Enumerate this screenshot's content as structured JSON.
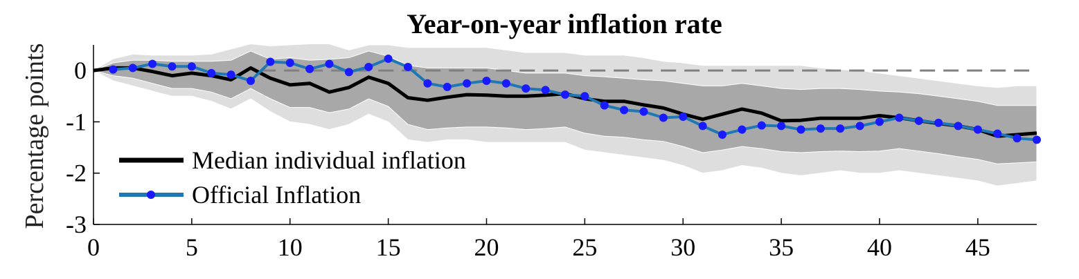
{
  "chart_data": {
    "type": "line",
    "title": "Year-on-year inflation rate",
    "xlabel": "",
    "ylabel": "Percentage points",
    "xlim": [
      0,
      48
    ],
    "ylim": [
      -3,
      0.5
    ],
    "x_ticks": [
      "0",
      "5",
      "10",
      "15",
      "20",
      "25",
      "30",
      "35",
      "40",
      "45"
    ],
    "y_ticks": [
      "0",
      "-1",
      "-2",
      "-3"
    ],
    "x": [
      0,
      1,
      2,
      3,
      4,
      5,
      6,
      7,
      8,
      9,
      10,
      11,
      12,
      13,
      14,
      15,
      16,
      17,
      18,
      19,
      20,
      21,
      22,
      23,
      24,
      25,
      26,
      27,
      28,
      29,
      30,
      31,
      32,
      33,
      34,
      35,
      36,
      37,
      38,
      39,
      40,
      41,
      42,
      43,
      44,
      45,
      46,
      47,
      48
    ],
    "series": [
      {
        "name": "Median individual inflation",
        "color": "#000000",
        "values": [
          0,
          0.05,
          0.05,
          -0.02,
          -0.1,
          -0.05,
          -0.1,
          -0.18,
          0.05,
          -0.15,
          -0.28,
          -0.25,
          -0.42,
          -0.33,
          -0.13,
          -0.25,
          -0.53,
          -0.58,
          -0.52,
          -0.47,
          -0.48,
          -0.5,
          -0.5,
          -0.48,
          -0.45,
          -0.55,
          -0.6,
          -0.6,
          -0.67,
          -0.73,
          -0.85,
          -0.95,
          -0.85,
          -0.75,
          -0.83,
          -0.98,
          -0.97,
          -0.93,
          -0.93,
          -0.93,
          -0.88,
          -0.92,
          -0.98,
          -1.03,
          -1.08,
          -1.15,
          -1.28,
          -1.25,
          -1.22
        ]
      },
      {
        "name": "Official Inflation",
        "color": "#1f77b4",
        "marker_color": "#1a1aff",
        "values": [
          null,
          0.02,
          0.05,
          0.13,
          0.08,
          0.08,
          -0.05,
          -0.08,
          -0.2,
          0.17,
          0.15,
          0.03,
          0.13,
          -0.03,
          0.07,
          0.23,
          0.07,
          -0.25,
          -0.32,
          -0.25,
          -0.2,
          -0.25,
          -0.35,
          -0.38,
          -0.47,
          -0.5,
          -0.68,
          -0.77,
          -0.8,
          -0.92,
          -0.9,
          -1.08,
          -1.25,
          -1.15,
          -1.07,
          -1.08,
          -1.15,
          -1.13,
          -1.13,
          -1.08,
          -1.0,
          -0.92,
          -0.98,
          -1.02,
          -1.08,
          -1.15,
          -1.23,
          -1.32,
          -1.35
        ]
      }
    ],
    "bands": [
      {
        "color": "#dedede",
        "upper": [
          0,
          0.23,
          0.32,
          0.3,
          0.3,
          0.3,
          0.32,
          0.42,
          0.52,
          0.48,
          0.5,
          0.52,
          0.52,
          0.4,
          0.5,
          0.5,
          0.45,
          0.45,
          0.45,
          0.45,
          0.45,
          0.4,
          0.35,
          0.35,
          0.35,
          0.3,
          0.3,
          0.3,
          0.25,
          0.18,
          0.15,
          0.1,
          0.1,
          0.1,
          0.1,
          0.1,
          0.1,
          0.05,
          0.02,
          0.0,
          -0.05,
          -0.1,
          -0.15,
          -0.2,
          -0.25,
          -0.3,
          -0.33,
          -0.3,
          -0.3
        ],
        "lower": [
          0,
          -0.2,
          -0.3,
          -0.4,
          -0.5,
          -0.5,
          -0.6,
          -0.75,
          -0.55,
          -0.8,
          -1.0,
          -1.05,
          -1.15,
          -1.05,
          -0.85,
          -1.0,
          -1.35,
          -1.4,
          -1.35,
          -1.35,
          -1.4,
          -1.4,
          -1.4,
          -1.4,
          -1.4,
          -1.55,
          -1.6,
          -1.65,
          -1.7,
          -1.75,
          -1.85,
          -2.0,
          -1.95,
          -1.85,
          -1.9,
          -2.0,
          -2.05,
          -2.0,
          -1.95,
          -2.0,
          -2.0,
          -1.95,
          -2.0,
          -2.05,
          -2.1,
          -2.15,
          -2.25,
          -2.2,
          -2.15
        ]
      },
      {
        "color": "#a8a8a8",
        "upper": [
          0,
          0.15,
          0.2,
          0.2,
          0.18,
          0.18,
          0.18,
          0.2,
          0.38,
          0.22,
          0.25,
          0.2,
          0.22,
          0.25,
          0.38,
          0.28,
          0.1,
          0.05,
          0.05,
          0.05,
          0.05,
          0.0,
          -0.05,
          -0.05,
          -0.05,
          -0.1,
          -0.12,
          -0.15,
          -0.18,
          -0.2,
          -0.25,
          -0.3,
          -0.3,
          -0.25,
          -0.3,
          -0.35,
          -0.37,
          -0.35,
          -0.35,
          -0.37,
          -0.4,
          -0.42,
          -0.45,
          -0.5,
          -0.55,
          -0.6,
          -0.68,
          -0.68,
          -0.68
        ],
        "lower": [
          0,
          -0.1,
          -0.15,
          -0.25,
          -0.35,
          -0.35,
          -0.42,
          -0.55,
          -0.35,
          -0.55,
          -0.72,
          -0.72,
          -0.82,
          -0.75,
          -0.55,
          -0.7,
          -1.05,
          -1.15,
          -1.12,
          -1.1,
          -1.1,
          -1.12,
          -1.15,
          -1.13,
          -1.1,
          -1.22,
          -1.28,
          -1.3,
          -1.35,
          -1.38,
          -1.48,
          -1.6,
          -1.55,
          -1.48,
          -1.52,
          -1.58,
          -1.6,
          -1.58,
          -1.57,
          -1.58,
          -1.57,
          -1.52,
          -1.57,
          -1.62,
          -1.68,
          -1.73,
          -1.82,
          -1.8,
          -1.78
        ]
      }
    ],
    "reference_line": {
      "y": 0,
      "style": "dashed",
      "color": "#808080"
    },
    "legend": {
      "placement": "bottom-left"
    },
    "grid": false
  }
}
